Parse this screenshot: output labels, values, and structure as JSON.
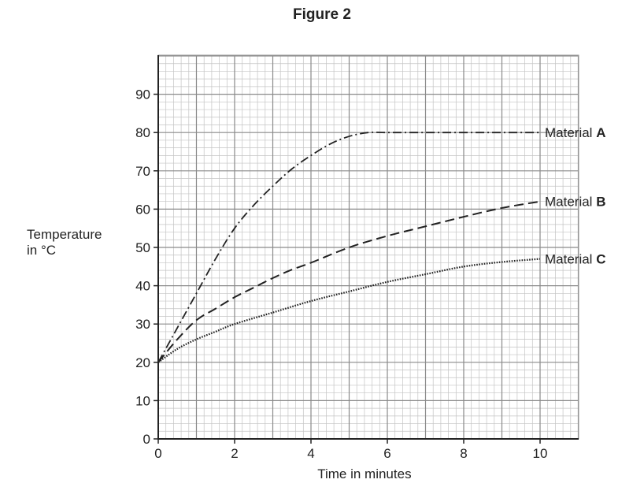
{
  "figure_title": "Figure 2",
  "chart_data": {
    "type": "line",
    "title": "Figure 2",
    "xlabel": "Time in minutes",
    "ylabel_lines": [
      "Temperature",
      "in °C"
    ],
    "xlim": [
      0,
      10.8
    ],
    "ylim": [
      0,
      100
    ],
    "x_ticks": [
      0,
      2,
      4,
      6,
      8,
      10
    ],
    "y_ticks": [
      0,
      10,
      20,
      30,
      40,
      50,
      60,
      70,
      80,
      90
    ],
    "grid": true,
    "x_minor_step": 0.2,
    "y_minor_step": 2,
    "series": [
      {
        "label_prefix": "Material ",
        "label_letter": "A",
        "style": "dash-dot",
        "x": [
          0,
          0.5,
          1,
          1.5,
          2,
          2.5,
          3,
          3.5,
          4,
          4.5,
          5,
          5.5,
          6,
          7,
          8,
          9,
          10
        ],
        "y": [
          20,
          29,
          38,
          47,
          55,
          61,
          66,
          70.5,
          74,
          77,
          79,
          80,
          80,
          80,
          80,
          80,
          80
        ]
      },
      {
        "label_prefix": "Material ",
        "label_letter": "B",
        "style": "dashed",
        "x": [
          0,
          0.5,
          1,
          1.5,
          2,
          2.5,
          3,
          3.5,
          4,
          5,
          6,
          7,
          8,
          9,
          10
        ],
        "y": [
          20,
          26,
          31,
          34,
          37,
          39.5,
          42,
          44.2,
          46,
          50,
          53,
          55.5,
          58,
          60.3,
          62
        ]
      },
      {
        "label_prefix": "Material ",
        "label_letter": "C",
        "style": "dotted",
        "x": [
          0,
          0.5,
          1,
          1.5,
          2,
          3,
          4,
          5,
          6,
          7,
          8,
          9,
          10
        ],
        "y": [
          20,
          23.5,
          26,
          28,
          30,
          33,
          36,
          38.5,
          41,
          43,
          45,
          46.2,
          47
        ]
      }
    ]
  }
}
